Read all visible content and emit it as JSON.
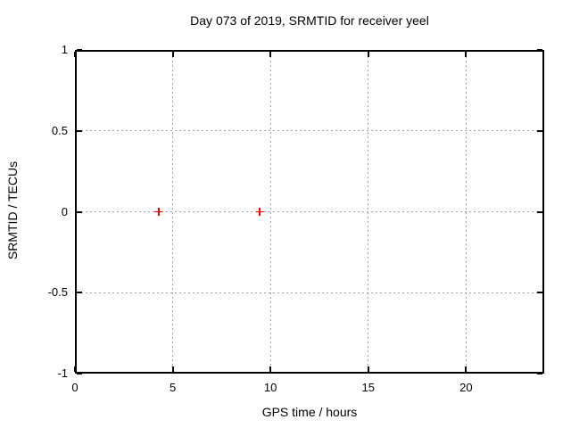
{
  "chart_data": {
    "type": "scatter",
    "title": "Day 073 of 2019, SRMTID for receiver yeel",
    "xlabel": "GPS time / hours",
    "ylabel": "SRMTID / TECUs",
    "xlim": [
      0,
      24
    ],
    "ylim": [
      -1,
      1
    ],
    "xticks": [
      0,
      5,
      10,
      15,
      20
    ],
    "yticks": [
      -1,
      -0.5,
      0,
      0.5,
      1
    ],
    "grid": true,
    "legend": "none",
    "series": [
      {
        "name": "SRMTID",
        "marker": "plus",
        "color": "#ff0000",
        "points": [
          {
            "x": 4.28,
            "y": 0.0
          },
          {
            "x": 9.45,
            "y": 0.0
          }
        ]
      }
    ]
  },
  "colors": {
    "background": "#ffffff",
    "text": "#000000",
    "axis_border": "#000000",
    "gridline": "#a0a0a0",
    "marker": "#ff0000"
  }
}
